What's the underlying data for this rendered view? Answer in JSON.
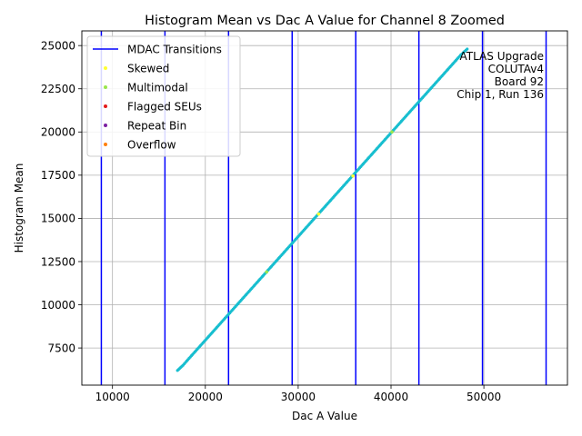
{
  "chart_data": {
    "type": "scatter",
    "title": "Histogram Mean vs Dac A Value for Channel 8 Zoomed",
    "xlabel": "Dac A Value",
    "ylabel": "Histogram Mean",
    "xlim": [
      6700,
      59000
    ],
    "ylim": [
      5350,
      25850
    ],
    "xticks": [
      10000,
      20000,
      30000,
      40000,
      50000
    ],
    "yticks": [
      7500,
      10000,
      12500,
      15000,
      17500,
      20000,
      22500,
      25000
    ],
    "xtick_labels": [
      "10000",
      "20000",
      "30000",
      "40000",
      "50000"
    ],
    "ytick_labels": [
      "7500",
      "10000",
      "12500",
      "15000",
      "17500",
      "20000",
      "22500",
      "25000"
    ],
    "grid": true,
    "legend_position": "top-left",
    "legend": [
      {
        "label": "MDAC Transitions",
        "kind": "line",
        "color": "#0000ff"
      },
      {
        "label": "Skewed",
        "kind": "marker",
        "color": "#ffff33"
      },
      {
        "label": "Multimodal",
        "kind": "marker",
        "color": "#99e64d"
      },
      {
        "label": "Flagged SEUs",
        "kind": "marker",
        "color": "#e41a1c"
      },
      {
        "label": "Repeat Bin",
        "kind": "marker",
        "color": "#7b1fa2"
      },
      {
        "label": "Overflow",
        "kind": "marker",
        "color": "#ff7f0e"
      }
    ],
    "annotation": [
      "ATLAS Upgrade",
      "COLUTAv4",
      "Board 92",
      "Chip 1, Run 136"
    ],
    "mdac_transitions": [
      8800,
      15650,
      22500,
      29350,
      36200,
      43000,
      49850,
      56700
    ],
    "mdac_color": "#0000ff",
    "series": [
      {
        "color": "#17becf",
        "x": [
          17000,
          17600,
          18000,
          18500,
          19000,
          19500,
          20000,
          21000,
          22000,
          23000,
          24000,
          25000,
          26000,
          27000,
          28000,
          29000,
          30000,
          31000,
          32000,
          33000,
          34000,
          35000,
          36000,
          37000,
          38000,
          39000,
          40000,
          41000,
          42000,
          43000,
          44000,
          45000,
          46000,
          47000,
          47500,
          48200
        ],
        "y": [
          6200,
          6500,
          6750,
          7050,
          7350,
          7650,
          7950,
          8550,
          9150,
          9750,
          10350,
          10950,
          11550,
          12150,
          12750,
          13350,
          13950,
          14550,
          15150,
          15750,
          16350,
          16950,
          17550,
          18150,
          18750,
          19350,
          19950,
          20550,
          21150,
          21750,
          22350,
          22950,
          23550,
          24150,
          24450,
          24800
        ]
      }
    ],
    "highlight_points": [
      {
        "category": "Skewed",
        "x": 32200,
        "y": 15250
      },
      {
        "category": "Multimodal",
        "x": 26600,
        "y": 11900
      },
      {
        "category": "Multimodal",
        "x": 40100,
        "y": 20000
      },
      {
        "category": "Skewed",
        "x": 35900,
        "y": 17450
      }
    ]
  }
}
